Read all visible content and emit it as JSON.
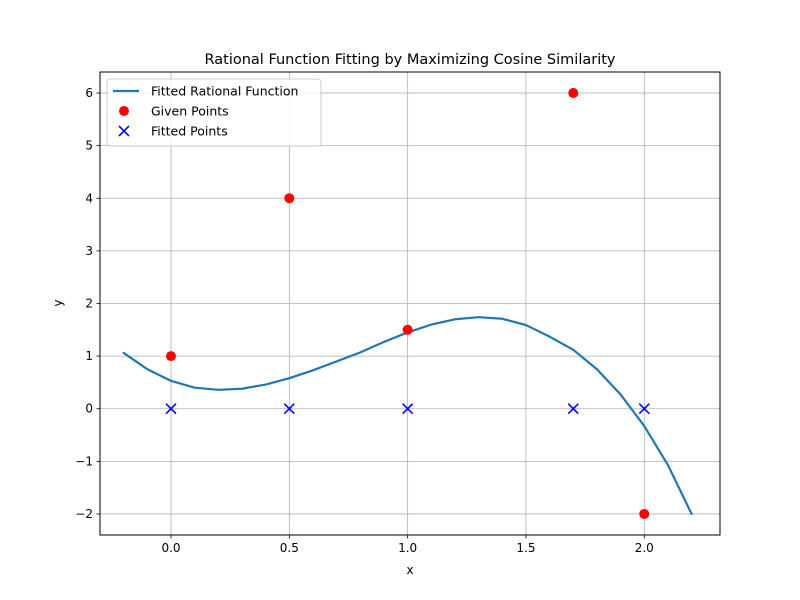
{
  "chart_data": {
    "type": "line",
    "title": "Rational Function Fitting by Maximizing Cosine Similarity",
    "xlabel": "x",
    "ylabel": "y",
    "xlim": [
      -0.3,
      2.32
    ],
    "ylim": [
      -2.4,
      6.4
    ],
    "xticks": [
      0.0,
      0.5,
      1.0,
      1.5,
      2.0
    ],
    "xtick_labels": [
      "0.0",
      "0.5",
      "1.0",
      "1.5",
      "2.0"
    ],
    "yticks": [
      -2,
      -1,
      0,
      1,
      2,
      3,
      4,
      5,
      6
    ],
    "ytick_labels": [
      "−2",
      "−1",
      "0",
      "1",
      "2",
      "3",
      "4",
      "5",
      "6"
    ],
    "grid": true,
    "legend_position": "top-left",
    "series": [
      {
        "name": "Fitted Rational Function",
        "kind": "line",
        "color": "#1f77b4",
        "points": [
          [
            -0.2,
            1.06
          ],
          [
            -0.1,
            0.75
          ],
          [
            0.0,
            0.53
          ],
          [
            0.1,
            0.4
          ],
          [
            0.2,
            0.36
          ],
          [
            0.3,
            0.38
          ],
          [
            0.4,
            0.46
          ],
          [
            0.5,
            0.58
          ],
          [
            0.6,
            0.73
          ],
          [
            0.7,
            0.9
          ],
          [
            0.8,
            1.07
          ],
          [
            0.9,
            1.27
          ],
          [
            1.0,
            1.45
          ],
          [
            1.1,
            1.6
          ],
          [
            1.2,
            1.7
          ],
          [
            1.3,
            1.74
          ],
          [
            1.4,
            1.71
          ],
          [
            1.5,
            1.59
          ],
          [
            1.6,
            1.37
          ],
          [
            1.7,
            1.12
          ],
          [
            1.8,
            0.75
          ],
          [
            1.9,
            0.27
          ],
          [
            2.0,
            -0.33
          ],
          [
            2.1,
            -1.07
          ],
          [
            2.2,
            -2.0
          ]
        ]
      },
      {
        "name": "Given Points",
        "kind": "scatter",
        "marker": "circle",
        "color": "#ff0000",
        "points": [
          [
            0.0,
            1
          ],
          [
            0.5,
            4
          ],
          [
            1.0,
            1.5
          ],
          [
            1.7,
            6
          ],
          [
            2.0,
            -2
          ]
        ]
      },
      {
        "name": "Fitted Points",
        "kind": "scatter",
        "marker": "x",
        "color": "#0000ff",
        "points": [
          [
            0.0,
            0
          ],
          [
            0.5,
            0
          ],
          [
            1.0,
            0
          ],
          [
            1.7,
            0
          ],
          [
            2.0,
            0
          ]
        ]
      }
    ]
  }
}
